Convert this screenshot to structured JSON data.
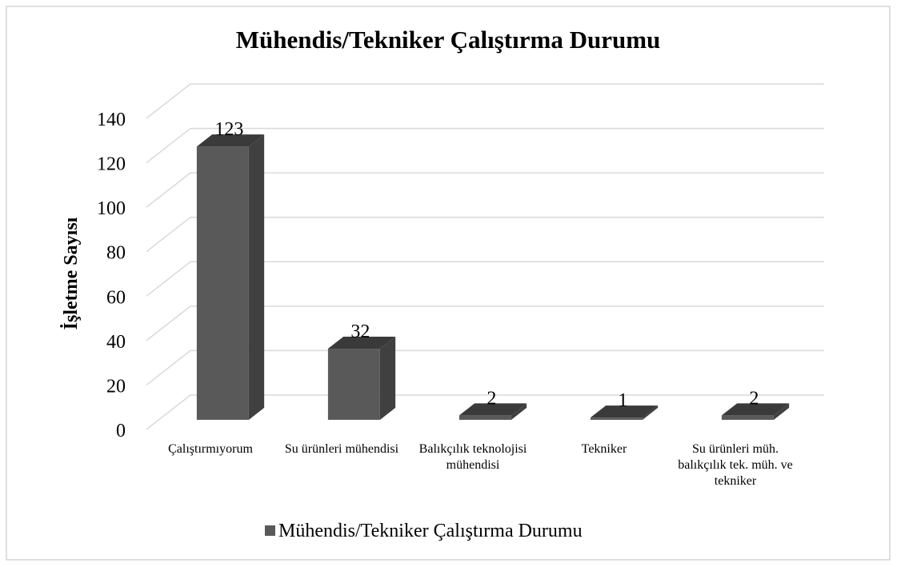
{
  "chart_data": {
    "type": "bar3d",
    "title": "Mühendis/Tekniker Çalıştırma Durumu",
    "y_label": "İşletme Sayısı",
    "categories": [
      "Çalıştırmıyorum",
      "Su ürünleri mühendisi",
      "Balıkçılık teknolojisi mühendisi",
      "Tekniker",
      "Su ürünleri müh. balıkçılık tek. müh. ve tekniker"
    ],
    "series": [
      {
        "name": "Mühendis/Tekniker Çalıştırma Durumu",
        "color": "#595959",
        "values": [
          123,
          32,
          2,
          1,
          2
        ]
      }
    ],
    "ylim": [
      0,
      140
    ],
    "yticks": [
      0,
      20,
      40,
      60,
      80,
      100,
      120,
      140
    ],
    "grid": true,
    "legend": "bottom"
  }
}
